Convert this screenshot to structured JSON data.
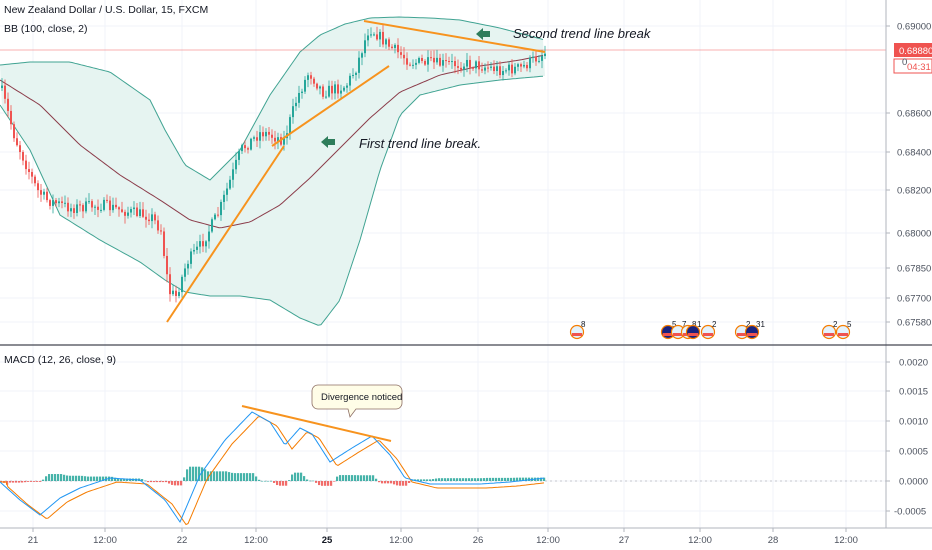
{
  "header": {
    "symbol_title": "New Zealand Dollar / U.S. Dollar, 15, FXCM",
    "bb_indicator": "BB (100, close, 2)",
    "macd_indicator": "MACD (12, 26, close, 9)"
  },
  "price_axis": {
    "ticks": [
      "0.69000",
      "0.68600",
      "0.68400",
      "0.68200",
      "0.68000",
      "0.67850",
      "0.67700",
      "0.67580"
    ],
    "current_price_label": "0.68880",
    "countdown_label": "04:31",
    "partial_label": "0"
  },
  "macd_axis": {
    "ticks": [
      "0.0020",
      "0.0015",
      "0.0010",
      "0.0005",
      "0.0000",
      "-0.0005"
    ]
  },
  "time_axis": {
    "labels": [
      "21",
      "12:00",
      "22",
      "12:00",
      "25",
      "12:00",
      "26",
      "12:00",
      "27",
      "12:00",
      "28",
      "12:00"
    ]
  },
  "annotations": {
    "second_break": "Second trend line break",
    "first_break": "First trend line break.",
    "divergence": "Divergence noticed"
  },
  "events": [
    "8",
    "5",
    "7",
    "8",
    "1",
    "2",
    "2",
    "31",
    "2",
    "5"
  ],
  "colors": {
    "up_candle": "#26a69a",
    "down_candle": "#ef5350",
    "bollinger_band": "#40a392",
    "bollinger_fill": "#e6f4f1",
    "bollinger_basis": "#8b3c4a",
    "trend_line": "#f7931e",
    "macd_line": "#2196f3",
    "signal_line": "#f57c00",
    "price_label_bg": "#ef5350",
    "arrow_marker": "#2e7d5b"
  },
  "chart_data": [
    {
      "type": "candlestick",
      "title": "New Zealand Dollar / U.S. Dollar, 15, FXCM",
      "ylim": [
        0.6755,
        0.6907
      ],
      "x_labels": [
        "21",
        "12:00",
        "22",
        "12:00",
        "25",
        "12:00",
        "26",
        "12:00",
        "27",
        "12:00",
        "28",
        "12:00"
      ],
      "key_points": [
        {
          "x": "21 open",
          "y": 0.687
        },
        {
          "x": "21 low",
          "y": 0.6812
        },
        {
          "x": "22 low",
          "y": 0.6758
        },
        {
          "x": "22 12:00",
          "y": 0.685
        },
        {
          "x": "25 high",
          "y": 0.6901
        },
        {
          "x": "26 last",
          "y": 0.6888
        }
      ],
      "current_price": 0.6888,
      "trend_lines": [
        {
          "name": "first trend line",
          "from": [
            "22",
            0.6758
          ],
          "to": [
            "25",
            0.688
          ]
        },
        {
          "name": "second trend line",
          "from": [
            "25",
            0.6902
          ],
          "to": [
            "26",
            0.689
          ]
        }
      ]
    },
    {
      "type": "line",
      "title": "MACD (12, 26, close, 9)",
      "ylim": [
        -0.0007,
        0.0021
      ],
      "series": [
        {
          "name": "MACD",
          "peaks": [
            0.0012,
            0.00105,
            0.0008
          ]
        },
        {
          "name": "Signal",
          "peaks": [
            0.0011,
            0.00095,
            0.00072
          ]
        }
      ],
      "divergence_peaks": [
        0.0012,
        0.00105,
        0.0008
      ]
    }
  ]
}
